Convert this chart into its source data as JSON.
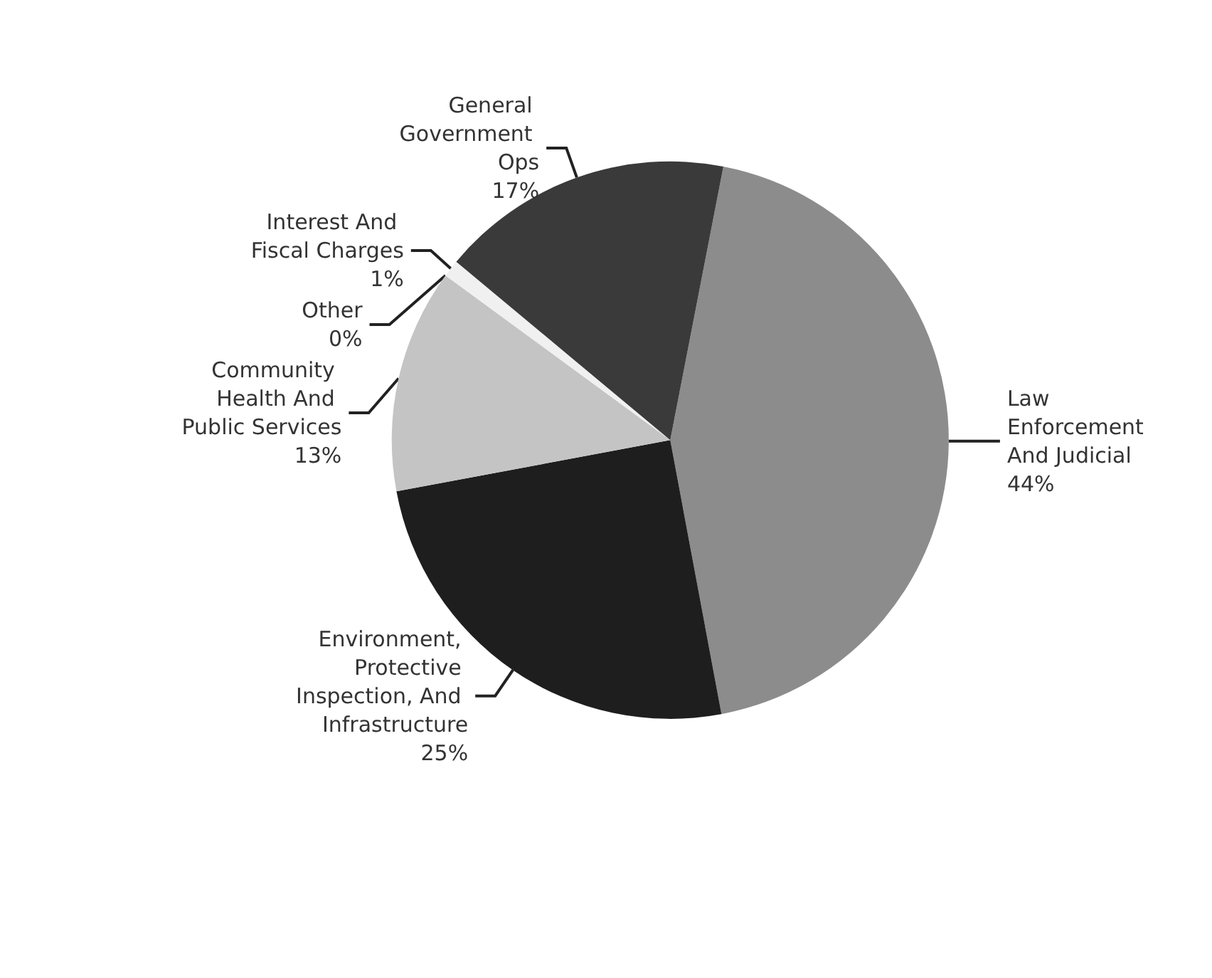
{
  "chart_data": {
    "type": "pie",
    "categories": [
      "Law Enforcement And Judicial",
      "Environment, Protective Inspection, And Infrastructure",
      "Community Health And Public Services",
      "Other",
      "Interest And Fiscal Charges",
      "General Government Ops"
    ],
    "values": [
      44,
      25,
      13,
      0,
      1,
      17
    ],
    "colors": [
      "#8c8c8c",
      "#1e1e1e",
      "#c4c4c4",
      "#e8e8e8",
      "#f0f0f0",
      "#3a3a3a"
    ],
    "value_labels": [
      "44%",
      "25%",
      "13%",
      "0%",
      "1%",
      "17%"
    ]
  }
}
